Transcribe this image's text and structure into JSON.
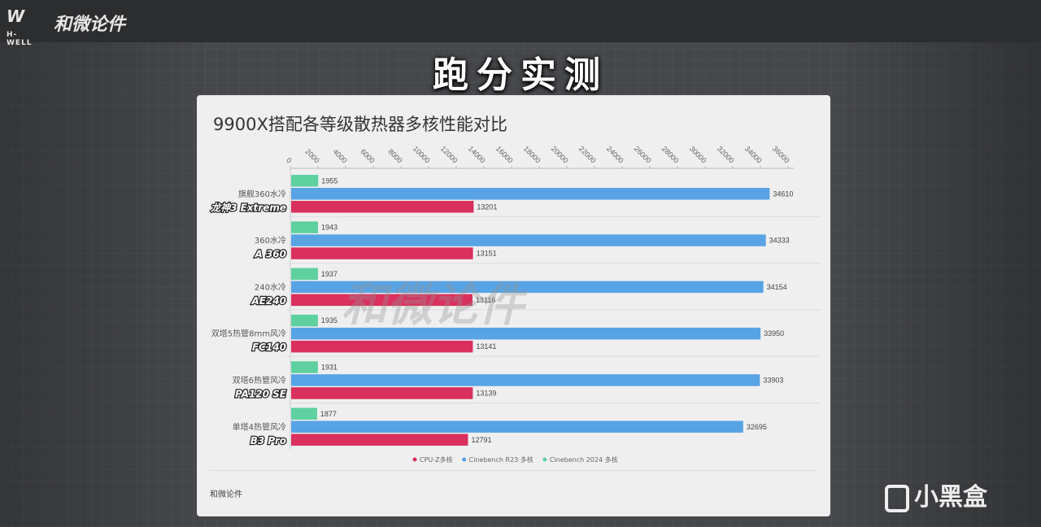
{
  "header": {
    "logo_mark": "W",
    "logo_en": "H-WELL",
    "logo_cn": "和微论件",
    "heading": "跑分实测"
  },
  "watermark": "和微论件",
  "brand": {
    "label": "小黑盒"
  },
  "chart_data": {
    "type": "bar",
    "orientation": "horizontal",
    "title": "9900X搭配各等级散热器多核性能对比",
    "source": "和微论件",
    "categories": [
      {
        "sub": "旗舰360水冷",
        "name": "龙神3 Extreme"
      },
      {
        "sub": "360水冷",
        "name": "A 360"
      },
      {
        "sub": "240水冷",
        "name": "AE240"
      },
      {
        "sub": "双塔5热管8mm风冷",
        "name": "FC140"
      },
      {
        "sub": "双塔6热管风冷",
        "name": "PA120 SE"
      },
      {
        "sub": "单塔4热管风冷",
        "name": "B3 Pro"
      }
    ],
    "series": [
      {
        "name": "Cinebench 2024 多核",
        "color": "#5fd0a0",
        "values": [
          1955,
          1943,
          1937,
          1935,
          1931,
          1877
        ]
      },
      {
        "name": "Cinebench R23 多核",
        "color": "#58a3e4",
        "values": [
          34610,
          34333,
          34154,
          33950,
          33903,
          32695
        ]
      },
      {
        "name": "CPU-Z多核",
        "color": "#d9305e",
        "values": [
          13201,
          13151,
          13116,
          13141,
          13139,
          12791
        ]
      }
    ],
    "legend_order": [
      "CPU-Z多核",
      "Cinebench R23 多核",
      "Cinebench 2024 多核"
    ],
    "legend_position": "bottom",
    "xlim": [
      0,
      36000
    ],
    "xticks": [
      0,
      2000,
      4000,
      6000,
      8000,
      10000,
      12000,
      14000,
      16000,
      18000,
      20000,
      22000,
      24000,
      26000,
      28000,
      30000,
      32000,
      34000,
      36000
    ],
    "x_axis_position": "top"
  }
}
